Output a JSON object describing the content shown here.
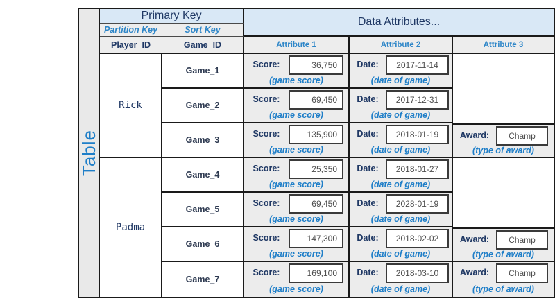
{
  "diagram_title": "Table",
  "headers": {
    "primary_key": "Primary Key",
    "data_attributes": "Data Attributes...",
    "partition_key": "Partition Key",
    "sort_key": "Sort Key",
    "player_id": "Player_ID",
    "game_id": "Game_ID",
    "attributes": [
      "Attribute 1",
      "Attribute 2",
      "Attribute 3"
    ]
  },
  "labels": {
    "score": "Score:",
    "date": "Date:",
    "award": "Award:",
    "score_annotation": "(game score)",
    "date_annotation": "(date of game)",
    "award_annotation": "(type of award)"
  },
  "players": [
    {
      "name": "Rick",
      "games": [
        {
          "id": "Game_1",
          "score": "36,750",
          "date": "2017-11-14",
          "award": null
        },
        {
          "id": "Game_2",
          "score": "69,450",
          "date": "2017-12-31",
          "award": null
        },
        {
          "id": "Game_3",
          "score": "135,900",
          "date": "2018-01-19",
          "award": "Champ"
        }
      ]
    },
    {
      "name": "Padma",
      "games": [
        {
          "id": "Game_4",
          "score": "25,350",
          "date": "2018-01-27",
          "award": null
        },
        {
          "id": "Game_5",
          "score": "69,450",
          "date": "2028-01-19",
          "award": null
        },
        {
          "id": "Game_6",
          "score": "147,300",
          "date": "2018-02-02",
          "award": "Champ"
        },
        {
          "id": "Game_7",
          "score": "169,100",
          "date": "2018-03-10",
          "award": "Champ"
        }
      ]
    }
  ],
  "colors": {
    "header_blue_bg": "#d9e8f6",
    "navy_text": "#1f3864",
    "accent_blue": "#1e7ec8",
    "cell_gray_bg": "#ececec",
    "border_black": "#1a1a1a"
  }
}
